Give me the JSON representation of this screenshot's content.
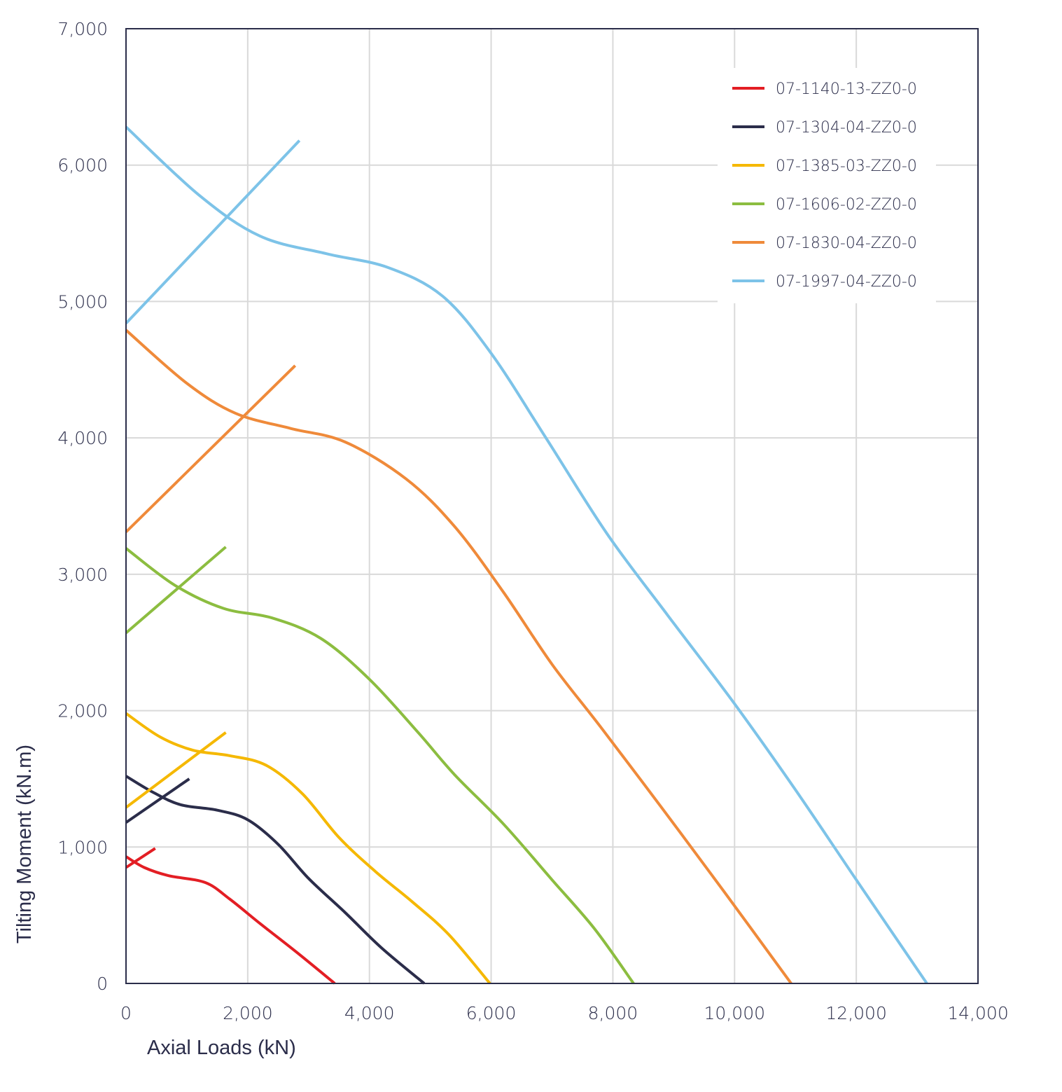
{
  "chart_data": {
    "type": "line",
    "title": "",
    "xlabel": "Axial Loads (kN)",
    "ylabel": "Tilting Moment (kN.m)",
    "xlim": [
      0,
      14000
    ],
    "ylim": [
      0,
      7000
    ],
    "x_ticks": [
      "0",
      "2,000",
      "4,000",
      "6,000",
      "8,000",
      "10,000",
      "12,000",
      "14,000"
    ],
    "y_ticks": [
      "0",
      "1,000",
      "2,000",
      "3,000",
      "4,000",
      "5,000",
      "6,000",
      "7,000"
    ],
    "grid": true,
    "legend_position": "top-right",
    "series": [
      {
        "name": "07-1140-13-ZZ0-0",
        "color": "#e31e24",
        "curve": [
          [
            0,
            930
          ],
          [
            300,
            850
          ],
          [
            700,
            790
          ],
          [
            1300,
            740
          ],
          [
            1700,
            620
          ],
          [
            2200,
            440
          ],
          [
            2800,
            230
          ],
          [
            3430,
            0
          ]
        ],
        "segment": [
          [
            0,
            850
          ],
          [
            480,
            990
          ]
        ]
      },
      {
        "name": "07-1304-04-ZZ0-0",
        "color": "#2b2d4a",
        "curve": [
          [
            0,
            1520
          ],
          [
            450,
            1400
          ],
          [
            900,
            1310
          ],
          [
            1500,
            1270
          ],
          [
            2000,
            1200
          ],
          [
            2500,
            1020
          ],
          [
            3000,
            770
          ],
          [
            3600,
            520
          ],
          [
            4200,
            260
          ],
          [
            4900,
            0
          ]
        ],
        "segment": [
          [
            0,
            1180
          ],
          [
            1040,
            1500
          ]
        ]
      },
      {
        "name": "07-1385-03-ZZ0-0",
        "color": "#f5b800",
        "curve": [
          [
            0,
            1980
          ],
          [
            550,
            1810
          ],
          [
            1100,
            1710
          ],
          [
            1700,
            1670
          ],
          [
            2300,
            1600
          ],
          [
            2900,
            1390
          ],
          [
            3500,
            1070
          ],
          [
            4100,
            820
          ],
          [
            4700,
            600
          ],
          [
            5300,
            360
          ],
          [
            5980,
            0
          ]
        ],
        "segment": [
          [
            0,
            1290
          ],
          [
            1640,
            1840
          ]
        ]
      },
      {
        "name": "07-1606-02-ZZ0-0",
        "color": "#8cbd40",
        "curve": [
          [
            0,
            3190
          ],
          [
            800,
            2920
          ],
          [
            1600,
            2750
          ],
          [
            2400,
            2680
          ],
          [
            3200,
            2530
          ],
          [
            4000,
            2230
          ],
          [
            4800,
            1840
          ],
          [
            5400,
            1530
          ],
          [
            6200,
            1170
          ],
          [
            7000,
            760
          ],
          [
            7700,
            400
          ],
          [
            8340,
            0
          ]
        ],
        "segment": [
          [
            0,
            2570
          ],
          [
            1640,
            3200
          ]
        ]
      },
      {
        "name": "07-1830-04-ZZ0-0",
        "color": "#ef8a3a",
        "curve": [
          [
            0,
            4790
          ],
          [
            1000,
            4400
          ],
          [
            1800,
            4180
          ],
          [
            2700,
            4070
          ],
          [
            3600,
            3970
          ],
          [
            4600,
            3700
          ],
          [
            5400,
            3350
          ],
          [
            6200,
            2870
          ],
          [
            7000,
            2340
          ],
          [
            7800,
            1880
          ],
          [
            8800,
            1290
          ],
          [
            9800,
            690
          ],
          [
            10930,
            0
          ]
        ],
        "segment": [
          [
            0,
            3310
          ],
          [
            2780,
            4530
          ]
        ]
      },
      {
        "name": "07-1997-04-ZZ0-0",
        "color": "#7dc3e8",
        "curve": [
          [
            0,
            6280
          ],
          [
            1200,
            5780
          ],
          [
            2200,
            5480
          ],
          [
            3300,
            5350
          ],
          [
            4300,
            5250
          ],
          [
            5200,
            5040
          ],
          [
            6000,
            4620
          ],
          [
            6900,
            4000
          ],
          [
            7900,
            3300
          ],
          [
            8900,
            2700
          ],
          [
            10000,
            2050
          ],
          [
            11000,
            1420
          ],
          [
            12000,
            760
          ],
          [
            13160,
            0
          ]
        ],
        "segment": [
          [
            0,
            4840
          ],
          [
            2850,
            6180
          ]
        ]
      }
    ]
  }
}
